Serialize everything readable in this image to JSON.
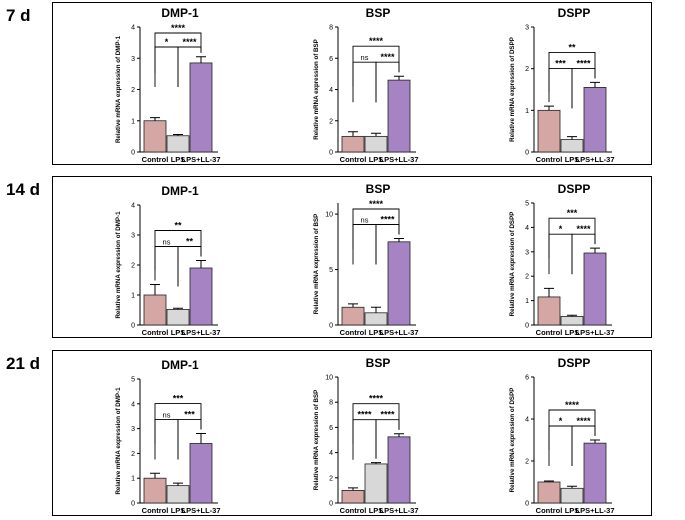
{
  "colors": {
    "control": "#d4a6a4",
    "lps": "#d8d8d8",
    "lps_ll37": "#a683c3",
    "frame": "#000000"
  },
  "rows": [
    {
      "label": "7 d"
    },
    {
      "label": "14 d"
    },
    {
      "label": "21 d"
    }
  ],
  "chart_data": [
    {
      "type": "bar",
      "row": "7 d",
      "title": "DMP-1",
      "ylabel": "Relative mRNA expression of DMP-1",
      "categories": [
        "Control",
        "LPS",
        "LPS+LL-37"
      ],
      "values": [
        1.0,
        0.52,
        2.85
      ],
      "errors": [
        0.1,
        0.04,
        0.2
      ],
      "ylim": [
        0,
        4
      ],
      "yticks": [
        "0",
        "1",
        "2",
        "3",
        "4"
      ],
      "brackets": [
        {
          "from": 0,
          "to": 1,
          "label": "*"
        },
        {
          "from": 1,
          "to": 2,
          "label": "****"
        },
        {
          "from": 0,
          "to": 2,
          "label": "****"
        }
      ]
    },
    {
      "type": "bar",
      "row": "7 d",
      "title": "BSP",
      "ylabel": "Relative mRNA expression of BSP",
      "categories": [
        "Control",
        "LPS",
        "LPS+LL-37"
      ],
      "values": [
        1.0,
        1.0,
        4.6
      ],
      "errors": [
        0.3,
        0.2,
        0.25
      ],
      "ylim": [
        0,
        8
      ],
      "yticks": [
        "0",
        "2",
        "4",
        "6",
        "8"
      ],
      "brackets": [
        {
          "from": 0,
          "to": 1,
          "label": "ns"
        },
        {
          "from": 1,
          "to": 2,
          "label": "****"
        },
        {
          "from": 0,
          "to": 2,
          "label": "****"
        }
      ]
    },
    {
      "type": "bar",
      "row": "7 d",
      "title": "DSPP",
      "ylabel": "Relative mRNA expression of DSPP",
      "categories": [
        "Control",
        "LPS",
        "LPS+LL-37"
      ],
      "values": [
        1.0,
        0.3,
        1.55
      ],
      "errors": [
        0.1,
        0.07,
        0.12
      ],
      "ylim": [
        0,
        3
      ],
      "yticks": [
        "0",
        "1",
        "2",
        "3"
      ],
      "brackets": [
        {
          "from": 0,
          "to": 1,
          "label": "***"
        },
        {
          "from": 1,
          "to": 2,
          "label": "****"
        },
        {
          "from": 0,
          "to": 2,
          "label": "**"
        }
      ]
    },
    {
      "type": "bar",
      "row": "14 d",
      "title": "DMP-1",
      "ylabel": "Relative mRNA expression of DMP-1",
      "categories": [
        "Control",
        "LPS",
        "LPS+LL-37"
      ],
      "values": [
        1.0,
        0.52,
        1.9
      ],
      "errors": [
        0.35,
        0.04,
        0.25
      ],
      "ylim": [
        0,
        4
      ],
      "yticks": [
        "0",
        "1",
        "2",
        "3",
        "4"
      ],
      "brackets": [
        {
          "from": 0,
          "to": 1,
          "label": "ns"
        },
        {
          "from": 1,
          "to": 2,
          "label": "**"
        },
        {
          "from": 0,
          "to": 2,
          "label": "**"
        }
      ]
    },
    {
      "type": "bar",
      "row": "14 d",
      "title": "BSP",
      "ylabel": "Relative mRNA expression of BSP",
      "categories": [
        "Control",
        "LPS",
        "LPS+LL-37"
      ],
      "values": [
        1.6,
        1.1,
        7.5
      ],
      "errors": [
        0.3,
        0.5,
        0.3
      ],
      "ylim": [
        0,
        11
      ],
      "yticks": [
        "0",
        "5",
        "10"
      ],
      "ytick_values": [
        0,
        5,
        10
      ],
      "brackets": [
        {
          "from": 0,
          "to": 1,
          "label": "ns"
        },
        {
          "from": 1,
          "to": 2,
          "label": "****"
        },
        {
          "from": 0,
          "to": 2,
          "label": "****"
        }
      ]
    },
    {
      "type": "bar",
      "row": "14 d",
      "title": "DSPP",
      "ylabel": "Relative mRNA expression of DSPP",
      "categories": [
        "Control",
        "LPS",
        "LPS+LL-37"
      ],
      "values": [
        1.15,
        0.35,
        2.95
      ],
      "errors": [
        0.35,
        0.05,
        0.2
      ],
      "ylim": [
        0,
        5
      ],
      "yticks": [
        "0",
        "1",
        "2",
        "3",
        "4",
        "5"
      ],
      "brackets": [
        {
          "from": 0,
          "to": 1,
          "label": "*"
        },
        {
          "from": 1,
          "to": 2,
          "label": "****"
        },
        {
          "from": 0,
          "to": 2,
          "label": "***"
        }
      ]
    },
    {
      "type": "bar",
      "row": "21 d",
      "title": "DMP-1",
      "ylabel": "Relative mRNA expression of DMP-1",
      "categories": [
        "Control",
        "LPS",
        "LPS+LL-37"
      ],
      "values": [
        1.0,
        0.7,
        2.4
      ],
      "errors": [
        0.2,
        0.1,
        0.4
      ],
      "ylim": [
        0,
        5
      ],
      "yticks": [
        "0",
        "1",
        "2",
        "3",
        "4",
        "5"
      ],
      "brackets": [
        {
          "from": 0,
          "to": 1,
          "label": "ns"
        },
        {
          "from": 1,
          "to": 2,
          "label": "***"
        },
        {
          "from": 0,
          "to": 2,
          "label": "***"
        }
      ]
    },
    {
      "type": "bar",
      "row": "21 d",
      "title": "BSP",
      "ylabel": "Relative mRNA expression of BSP",
      "categories": [
        "Control",
        "LPS",
        "LPS+LL-37"
      ],
      "values": [
        1.0,
        3.1,
        5.25
      ],
      "errors": [
        0.2,
        0.1,
        0.25
      ],
      "ylim": [
        0,
        10
      ],
      "yticks": [
        "0",
        "2",
        "4",
        "6",
        "8",
        "10"
      ],
      "brackets": [
        {
          "from": 0,
          "to": 1,
          "label": "****"
        },
        {
          "from": 1,
          "to": 2,
          "label": "****"
        },
        {
          "from": 0,
          "to": 2,
          "label": "****"
        }
      ]
    },
    {
      "type": "bar",
      "row": "21 d",
      "title": "DSPP",
      "ylabel": "Relative mRNA expression of DSPP",
      "categories": [
        "Control",
        "LPS",
        "LPS+LL-37"
      ],
      "values": [
        1.0,
        0.7,
        2.85
      ],
      "errors": [
        0.05,
        0.1,
        0.15
      ],
      "ylim": [
        0,
        6
      ],
      "yticks": [
        "0",
        "2",
        "4",
        "6"
      ],
      "brackets": [
        {
          "from": 0,
          "to": 1,
          "label": "*"
        },
        {
          "from": 1,
          "to": 2,
          "label": "****"
        },
        {
          "from": 0,
          "to": 2,
          "label": "****"
        }
      ]
    }
  ]
}
